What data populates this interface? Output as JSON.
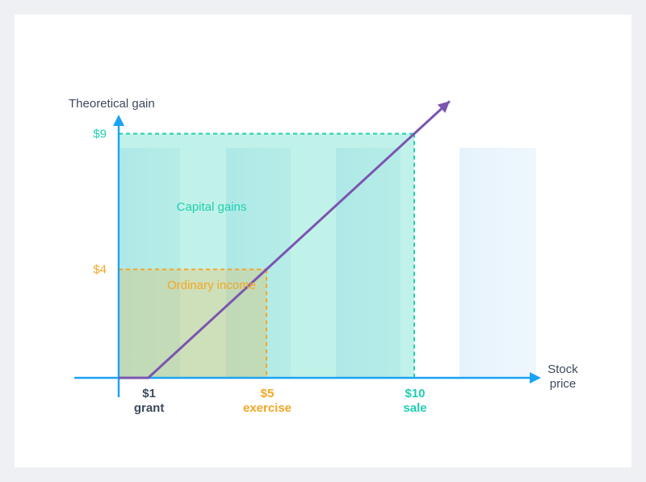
{
  "chart_data": {
    "type": "line",
    "ylabel": "Theoretical gain",
    "xlabel": [
      "Stock",
      "price"
    ],
    "x_ticks": [
      {
        "value": 1,
        "label": "$1",
        "sublabel": "grant",
        "color": "#3d4a5c"
      },
      {
        "value": 5,
        "label": "$5",
        "sublabel": "exercise",
        "color": "#f5a623"
      },
      {
        "value": 10,
        "label": "$10",
        "sublabel": "sale",
        "color": "#1fcfb0"
      }
    ],
    "y_ticks": [
      {
        "value": 4,
        "label": "$4",
        "color": "#f5a623"
      },
      {
        "value": 9,
        "label": "$9",
        "color": "#1fcfb0"
      }
    ],
    "series": [
      {
        "points": [
          [
            0,
            0
          ],
          [
            1,
            0
          ],
          [
            5,
            4
          ],
          [
            10,
            9
          ],
          [
            11.2,
            10.2
          ]
        ],
        "color": "#7b55b0"
      }
    ],
    "regions": [
      {
        "label": "Capital gains",
        "x": [
          0,
          10
        ],
        "y": [
          0,
          9
        ],
        "color": "#1fcfb0"
      },
      {
        "label": "Ordinary income",
        "x": [
          0,
          5
        ],
        "y": [
          0,
          4
        ],
        "color": "#f5a623"
      }
    ],
    "colors": {
      "axis": "#1aa3f5",
      "text": "#3d4a5c",
      "capital": "#1fcfb0",
      "ordinary": "#f5a623",
      "line": "#7b55b0"
    },
    "grid": false
  }
}
